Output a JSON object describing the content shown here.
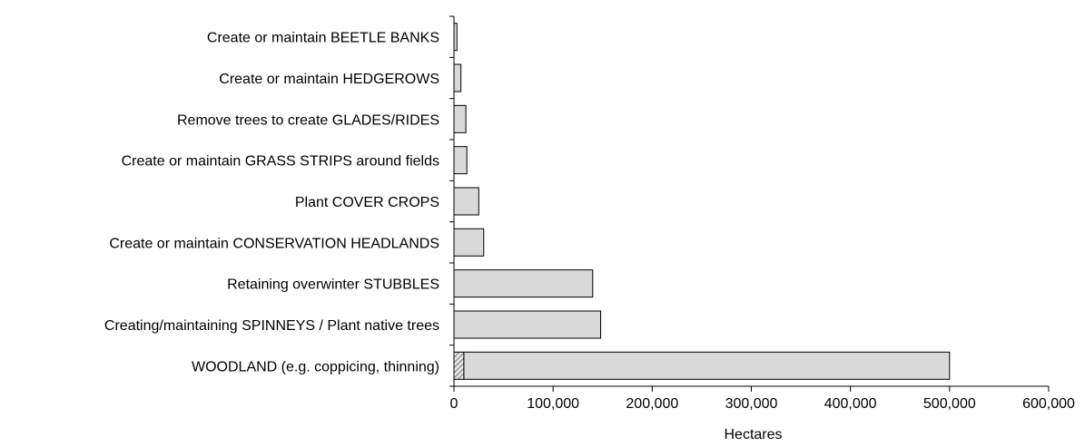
{
  "chart_data": {
    "type": "bar",
    "orientation": "horizontal",
    "categories": [
      "Create or maintain BEETLE BANKS",
      "Create or maintain HEDGEROWS",
      "Remove trees to create GLADES/RIDES",
      "Create or maintain GRASS STRIPS around fields",
      "Plant COVER CROPS",
      "Create or maintain CONSERVATION HEADLANDS",
      "Retaining overwinter STUBBLES",
      "Creating/maintaining SPINNEYS / Plant native trees",
      "WOODLAND (e.g. coppicing, thinning)"
    ],
    "series": [
      {
        "values": [
          0,
          0,
          0,
          0,
          0,
          0,
          0,
          0,
          10000
        ],
        "color": "#9a9a9a",
        "pattern": "hatched"
      },
      {
        "values": [
          3000,
          7000,
          12000,
          13000,
          25000,
          30000,
          140000,
          148000,
          490000
        ],
        "color": "#d9d9d9"
      }
    ],
    "stacked": true,
    "xlabel": "Hectares",
    "ylabel": "",
    "xlim": [
      0,
      600000
    ],
    "xticks": [
      0,
      100000,
      200000,
      300000,
      400000,
      500000,
      600000
    ],
    "xtick_labels": [
      "0",
      "100,000",
      "200,000",
      "300,000",
      "400,000",
      "500,000",
      "600,000"
    ],
    "grid": false,
    "legend": "none"
  }
}
